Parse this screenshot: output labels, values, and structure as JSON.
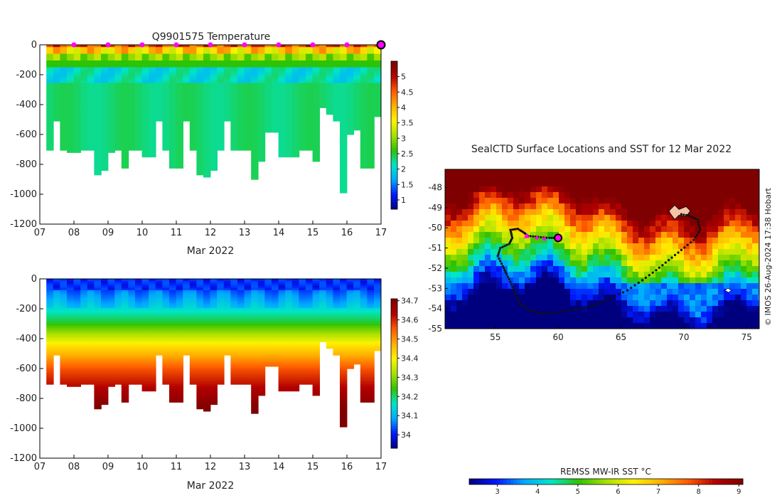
{
  "colors": {
    "turbo_stops": [
      "#00007f",
      "#0019ff",
      "#00a9ff",
      "#00e5c8",
      "#2ec200",
      "#a7e000",
      "#fff200",
      "#ffb000",
      "#ff5a00",
      "#b20000",
      "#7f0000"
    ],
    "marker_magenta": "#ff00ff",
    "marker_ring": "#4b0a4b",
    "track_black": "#111111"
  },
  "chart_data": [
    {
      "id": "temperature",
      "type": "heatmap",
      "title": "Q9901575  Temperature",
      "xlabel": "Mar 2022",
      "ylabel": "",
      "xlim": [
        7,
        17
      ],
      "ylim": [
        -1200,
        0
      ],
      "x_ticks": [
        "07",
        "08",
        "09",
        "10",
        "11",
        "12",
        "13",
        "14",
        "15",
        "16",
        "17"
      ],
      "y_ticks": [
        "0",
        "-200",
        "-400",
        "-600",
        "-800",
        "-1000",
        "-1200"
      ],
      "profiles_x": [
        7.3,
        7.5,
        7.7,
        7.9,
        8.1,
        8.3,
        8.5,
        8.7,
        8.9,
        9.1,
        9.3,
        9.5,
        9.7,
        9.9,
        10.1,
        10.3,
        10.5,
        10.7,
        10.9,
        11.1,
        11.3,
        11.5,
        11.7,
        11.9,
        12.1,
        12.3,
        12.5,
        12.7,
        12.9,
        13.1,
        13.3,
        13.5,
        13.7,
        13.9,
        14.1,
        14.3,
        14.5,
        14.7,
        14.9,
        15.1,
        15.3,
        15.5,
        15.7,
        15.9,
        16.1,
        16.3,
        16.5,
        16.7,
        16.9
      ],
      "profile_depths": [
        700,
        510,
        700,
        720,
        720,
        700,
        700,
        860,
        840,
        720,
        700,
        820,
        700,
        700,
        750,
        750,
        510,
        700,
        820,
        820,
        500,
        700,
        870,
        880,
        830,
        700,
        510,
        700,
        700,
        700,
        890,
        780,
        580,
        580,
        740,
        740,
        740,
        700,
        700,
        780,
        420,
        460,
        510,
        990,
        600,
        570,
        820,
        820,
        480
      ],
      "colorbar": {
        "label": "",
        "min": 0.7,
        "max": 5.5,
        "ticks": [
          "1",
          "1.5",
          "2",
          "2.5",
          "3",
          "3.5",
          "4",
          "4.5",
          "5"
        ]
      },
      "surface_markers_x": [
        8,
        9,
        10,
        11,
        12,
        13,
        14,
        15,
        16
      ],
      "current_marker_x": 17
    },
    {
      "id": "salinity",
      "type": "heatmap",
      "title": "",
      "xlabel": "Mar 2022",
      "ylabel": "",
      "xlim": [
        7,
        17
      ],
      "ylim": [
        -1200,
        0
      ],
      "x_ticks": [
        "07",
        "08",
        "09",
        "10",
        "11",
        "12",
        "13",
        "14",
        "15",
        "16",
        "17"
      ],
      "y_ticks": [
        "0",
        "-200",
        "-400",
        "-600",
        "-800",
        "-1000",
        "-1200"
      ],
      "colorbar": {
        "label": "",
        "min": 33.93,
        "max": 34.71,
        "ticks": [
          "34",
          "34.1",
          "34.2",
          "34.3",
          "34.4",
          "34.5",
          "34.6",
          "34.7"
        ]
      }
    },
    {
      "id": "sst_map",
      "type": "heatmap",
      "title": "SealCTD Surface Locations and SST for 12 Mar 2022",
      "xlabel": "",
      "ylabel": "",
      "xlim": [
        51,
        76
      ],
      "ylim": [
        -55,
        -47.1
      ],
      "x_ticks": [
        "55",
        "60",
        "65",
        "70",
        "75"
      ],
      "y_ticks": [
        "-48",
        "-49",
        "-50",
        "-51",
        "-52",
        "-53",
        "-54",
        "-55"
      ],
      "colorbar": {
        "label": "REMSS MW-IR SST °C",
        "min": 2.3,
        "max": 9.1,
        "ticks": [
          "3",
          "4",
          "5",
          "6",
          "7",
          "8",
          "9"
        ]
      },
      "current_position": {
        "lon": 60,
        "lat": -50.5
      },
      "recent_positions": [
        {
          "lon": 57.5,
          "lat": -50.4
        },
        {
          "lon": 58.3,
          "lat": -50.5
        },
        {
          "lon": 58.9,
          "lat": -50.55
        }
      ],
      "track": [
        {
          "lon": 60.0,
          "lat": -50.5
        },
        {
          "lon": 59.3,
          "lat": -50.5
        },
        {
          "lon": 58.4,
          "lat": -50.45
        },
        {
          "lon": 57.6,
          "lat": -50.4
        },
        {
          "lon": 57.3,
          "lat": -50.25
        },
        {
          "lon": 56.8,
          "lat": -50.05
        },
        {
          "lon": 56.2,
          "lat": -50.1
        },
        {
          "lon": 56.35,
          "lat": -50.5
        },
        {
          "lon": 56.1,
          "lat": -50.8
        },
        {
          "lon": 55.4,
          "lat": -51.0
        },
        {
          "lon": 55.2,
          "lat": -51.4
        },
        {
          "lon": 55.6,
          "lat": -51.9
        },
        {
          "lon": 55.9,
          "lat": -52.3
        },
        {
          "lon": 56.3,
          "lat": -52.8
        },
        {
          "lon": 56.6,
          "lat": -53.3
        },
        {
          "lon": 57.0,
          "lat": -53.8
        },
        {
          "lon": 57.8,
          "lat": -54.1
        },
        {
          "lon": 58.6,
          "lat": -54.25
        },
        {
          "lon": 59.6,
          "lat": -54.2
        },
        {
          "lon": 60.8,
          "lat": -54.1
        },
        {
          "lon": 62.0,
          "lat": -54.0
        },
        {
          "lon": 63.0,
          "lat": -53.8
        },
        {
          "lon": 64.2,
          "lat": -53.5
        },
        {
          "lon": 65.5,
          "lat": -53.1
        },
        {
          "lon": 66.7,
          "lat": -52.6
        },
        {
          "lon": 67.8,
          "lat": -52.1
        },
        {
          "lon": 68.8,
          "lat": -51.6
        },
        {
          "lon": 69.8,
          "lat": -51.1
        },
        {
          "lon": 70.8,
          "lat": -50.6
        },
        {
          "lon": 71.3,
          "lat": -50.1
        },
        {
          "lon": 71.1,
          "lat": -49.6
        },
        {
          "lon": 70.4,
          "lat": -49.4
        },
        {
          "lon": 69.6,
          "lat": -49.3
        }
      ],
      "islands": [
        {
          "name": "kerguelen",
          "lon": 69.5,
          "lat": -49.3
        },
        {
          "name": "heard",
          "lon": 73.5,
          "lat": -53.1
        }
      ]
    }
  ],
  "credit": "© IMOS 26-Aug-2024 17:38 Hobart"
}
